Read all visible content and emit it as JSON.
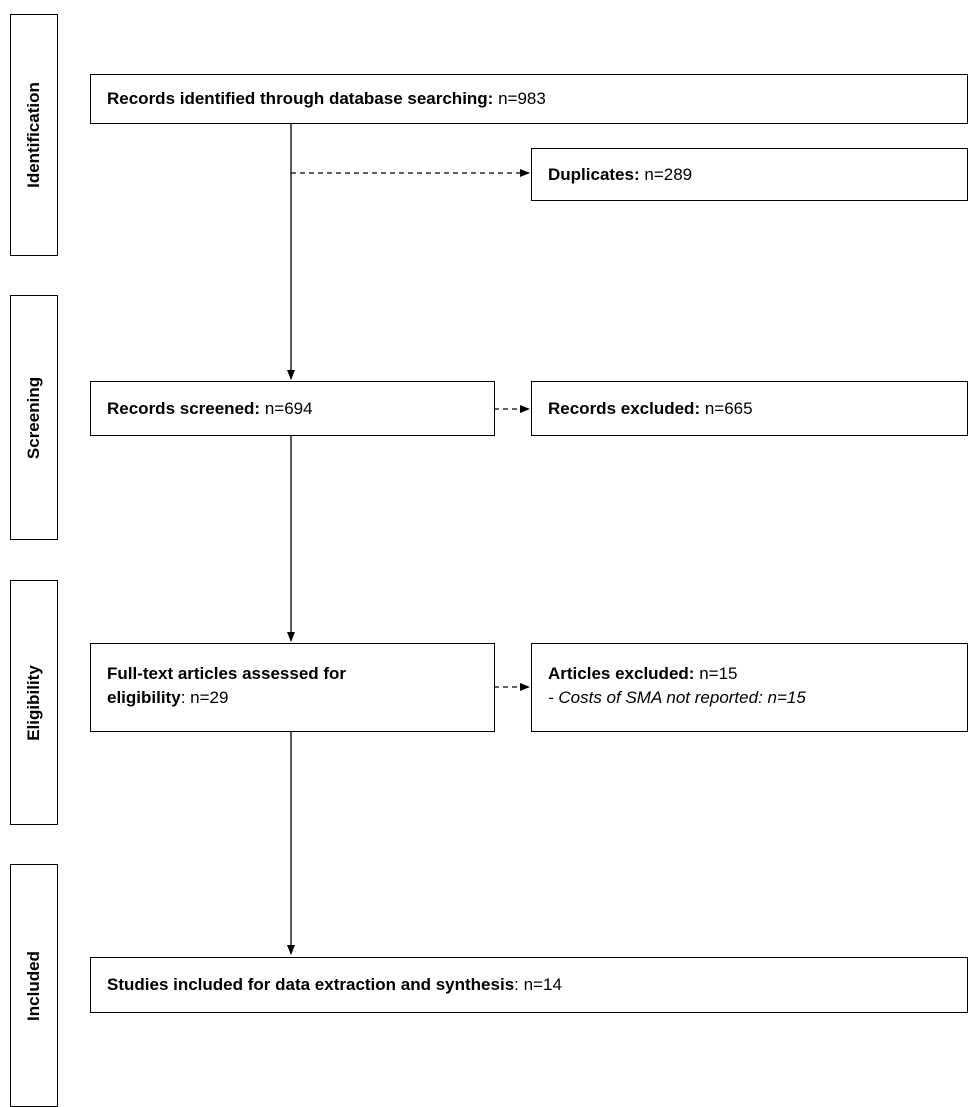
{
  "stages": [
    {
      "key": "identification",
      "label": "Identification"
    },
    {
      "key": "screening",
      "label": "Screening"
    },
    {
      "key": "eligibility",
      "label": "Eligibility"
    },
    {
      "key": "included",
      "label": "Included"
    }
  ],
  "boxes": {
    "identified": {
      "label": "Records identified through database searching:",
      "value": "n=983"
    },
    "duplicates": {
      "label": "Duplicates:",
      "value": "n=289"
    },
    "screened": {
      "label": "Records screened:",
      "value": "n=694"
    },
    "excluded_records": {
      "label": "Records excluded:",
      "value": "n=665"
    },
    "fulltext": {
      "label_line1": "Full-text articles assessed for",
      "label_line2": "eligibility",
      "value": ": n=29"
    },
    "excluded_articles": {
      "label": "Articles excluded:",
      "value": "n=15",
      "reason": "- Costs of SMA not reported: n=15"
    },
    "included": {
      "label": "Studies included for data extraction and synthesis",
      "value": ": n=14"
    }
  },
  "colors": {
    "line": "#000000",
    "box_border": "#000000",
    "background": "#ffffff"
  }
}
